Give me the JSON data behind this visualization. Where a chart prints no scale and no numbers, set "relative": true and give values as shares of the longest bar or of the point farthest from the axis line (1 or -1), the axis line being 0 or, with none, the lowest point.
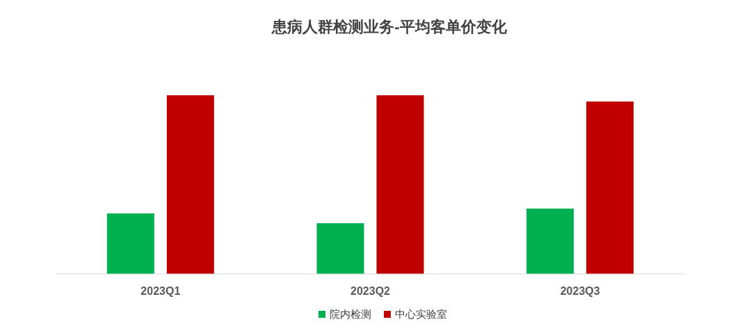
{
  "chart_data": {
    "type": "bar",
    "title": "患病人群检测业务-平均客单价变化",
    "relative": true,
    "categories": [
      "2023Q1",
      "2023Q2",
      "2023Q3"
    ],
    "series": [
      {
        "name": "院内检测",
        "color": "#00b050",
        "values": [
          0.339,
          0.284,
          0.366
        ]
      },
      {
        "name": "中心实验室",
        "color": "#c00000",
        "values": [
          1,
          1,
          0.965
        ]
      }
    ],
    "legend": "bottom"
  }
}
